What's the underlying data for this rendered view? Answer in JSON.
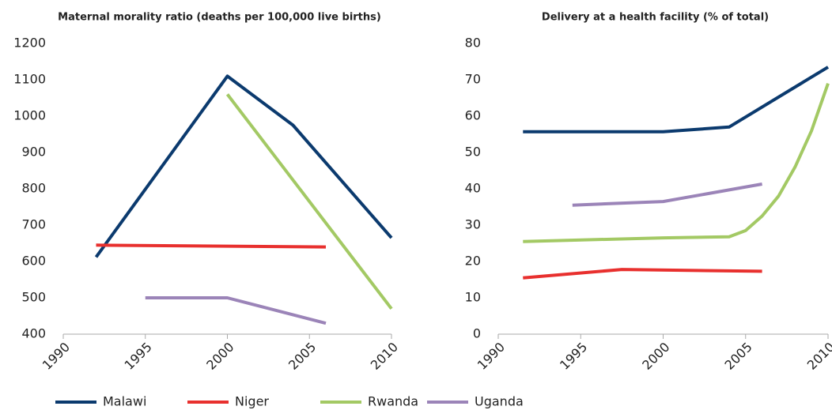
{
  "chart_data": [
    {
      "type": "line",
      "title": "Maternal morality ratio (deaths per 100,000 live births)",
      "xlim": [
        1990,
        2010
      ],
      "xticks": [
        1990,
        1995,
        2000,
        2005,
        2010
      ],
      "ylim": [
        400,
        1200
      ],
      "yticks": [
        400,
        500,
        600,
        700,
        800,
        900,
        1000,
        1100,
        1200
      ],
      "series": [
        {
          "name": "Malawi",
          "color": "#0b3a6e",
          "x": [
            1992,
            2000,
            2004,
            2010
          ],
          "values": [
            612,
            1110,
            975,
            665
          ]
        },
        {
          "name": "Niger",
          "color": "#e8302e",
          "x": [
            1992,
            2006
          ],
          "values": [
            645,
            640
          ]
        },
        {
          "name": "Rwanda",
          "color": "#a3c964",
          "x": [
            2000,
            2010
          ],
          "values": [
            1060,
            470
          ]
        },
        {
          "name": "Uganda",
          "color": "#9b84b8",
          "x": [
            1995,
            2000,
            2006
          ],
          "values": [
            500,
            500,
            430
          ]
        }
      ]
    },
    {
      "type": "line",
      "title": "Delivery at a health facility (% of  total)",
      "xlim": [
        1990,
        2010
      ],
      "xticks": [
        1990,
        1995,
        2000,
        2005,
        2010
      ],
      "ylim": [
        0,
        80
      ],
      "yticks": [
        0,
        10,
        20,
        30,
        40,
        50,
        60,
        70,
        80
      ],
      "series": [
        {
          "name": "Malawi",
          "color": "#0b3a6e",
          "x": [
            1991.5,
            2000,
            2004,
            2010
          ],
          "values": [
            55.7,
            55.7,
            57,
            73.5
          ]
        },
        {
          "name": "Niger",
          "color": "#e8302e",
          "x": [
            1991.5,
            1997.5,
            2006
          ],
          "values": [
            15.5,
            17.8,
            17.3
          ]
        },
        {
          "name": "Rwanda",
          "color": "#a3c964",
          "x": [
            1991.5,
            2000,
            2004,
            2005,
            2006,
            2007,
            2008,
            2009,
            2010
          ],
          "values": [
            25.5,
            26.5,
            26.8,
            28.5,
            32.5,
            38,
            46,
            56,
            69
          ]
        },
        {
          "name": "Uganda",
          "color": "#9b84b8",
          "x": [
            1994.5,
            2000,
            2006
          ],
          "values": [
            35.5,
            36.5,
            41.3
          ]
        }
      ]
    }
  ]
}
